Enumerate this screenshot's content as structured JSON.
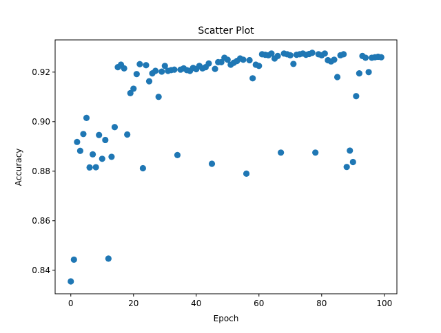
{
  "chart_data": {
    "type": "scatter",
    "title": "Scatter Plot",
    "xlabel": "Epoch",
    "ylabel": "Accuracy",
    "xlim": [
      -5,
      104
    ],
    "ylim": [
      0.8305,
      0.933
    ],
    "xticks": [
      0,
      20,
      40,
      60,
      80,
      100
    ],
    "yticks": [
      0.84,
      0.86,
      0.88,
      0.9,
      0.92
    ],
    "xtick_labels": [
      "0",
      "20",
      "40",
      "60",
      "80",
      "100"
    ],
    "ytick_labels": [
      "0.84",
      "0.86",
      "0.88",
      "0.90",
      "0.92"
    ],
    "grid": false,
    "legend": "none",
    "marker_color": "#1f77b4",
    "x": [
      0,
      1,
      2,
      3,
      4,
      5,
      6,
      7,
      8,
      9,
      10,
      11,
      12,
      13,
      14,
      15,
      16,
      17,
      18,
      19,
      20,
      21,
      22,
      23,
      24,
      25,
      26,
      27,
      28,
      29,
      30,
      31,
      32,
      33,
      34,
      35,
      36,
      37,
      38,
      39,
      40,
      41,
      42,
      43,
      44,
      45,
      46,
      47,
      48,
      49,
      50,
      51,
      52,
      53,
      54,
      55,
      56,
      57,
      58,
      59,
      60,
      61,
      62,
      63,
      64,
      65,
      66,
      67,
      68,
      69,
      70,
      71,
      72,
      73,
      74,
      75,
      76,
      77,
      78,
      79,
      80,
      81,
      82,
      83,
      84,
      85,
      86,
      87,
      88,
      89,
      90,
      91,
      92,
      93,
      94,
      95,
      96,
      97,
      98,
      99
    ],
    "y": [
      0.8355,
      0.8443,
      0.8918,
      0.8882,
      0.895,
      0.9015,
      0.8815,
      0.8868,
      0.8816,
      0.8946,
      0.885,
      0.8926,
      0.8447,
      0.8858,
      0.8978,
      0.922,
      0.923,
      0.9215,
      0.8948,
      0.9115,
      0.9133,
      0.9192,
      0.9232,
      0.8812,
      0.9228,
      0.9163,
      0.9195,
      0.9205,
      0.91,
      0.9202,
      0.9225,
      0.9205,
      0.9208,
      0.921,
      0.8865,
      0.921,
      0.9215,
      0.9208,
      0.9205,
      0.9217,
      0.9212,
      0.9225,
      0.9215,
      0.922,
      0.9235,
      0.883,
      0.9213,
      0.924,
      0.924,
      0.9258,
      0.925,
      0.923,
      0.9238,
      0.9245,
      0.9255,
      0.925,
      0.879,
      0.9248,
      0.9175,
      0.923,
      0.9225,
      0.9272,
      0.927,
      0.9268,
      0.9275,
      0.9255,
      0.9265,
      0.8875,
      0.9275,
      0.9272,
      0.9268,
      0.9233,
      0.927,
      0.9272,
      0.9275,
      0.927,
      0.9273,
      0.9278,
      0.8875,
      0.9272,
      0.9268,
      0.9275,
      0.9248,
      0.9243,
      0.925,
      0.918,
      0.9268,
      0.9272,
      0.8817,
      0.8883,
      0.8837,
      0.9103,
      0.9195,
      0.9265,
      0.9258,
      0.92,
      0.9258,
      0.926,
      0.9262,
      0.926
    ]
  }
}
